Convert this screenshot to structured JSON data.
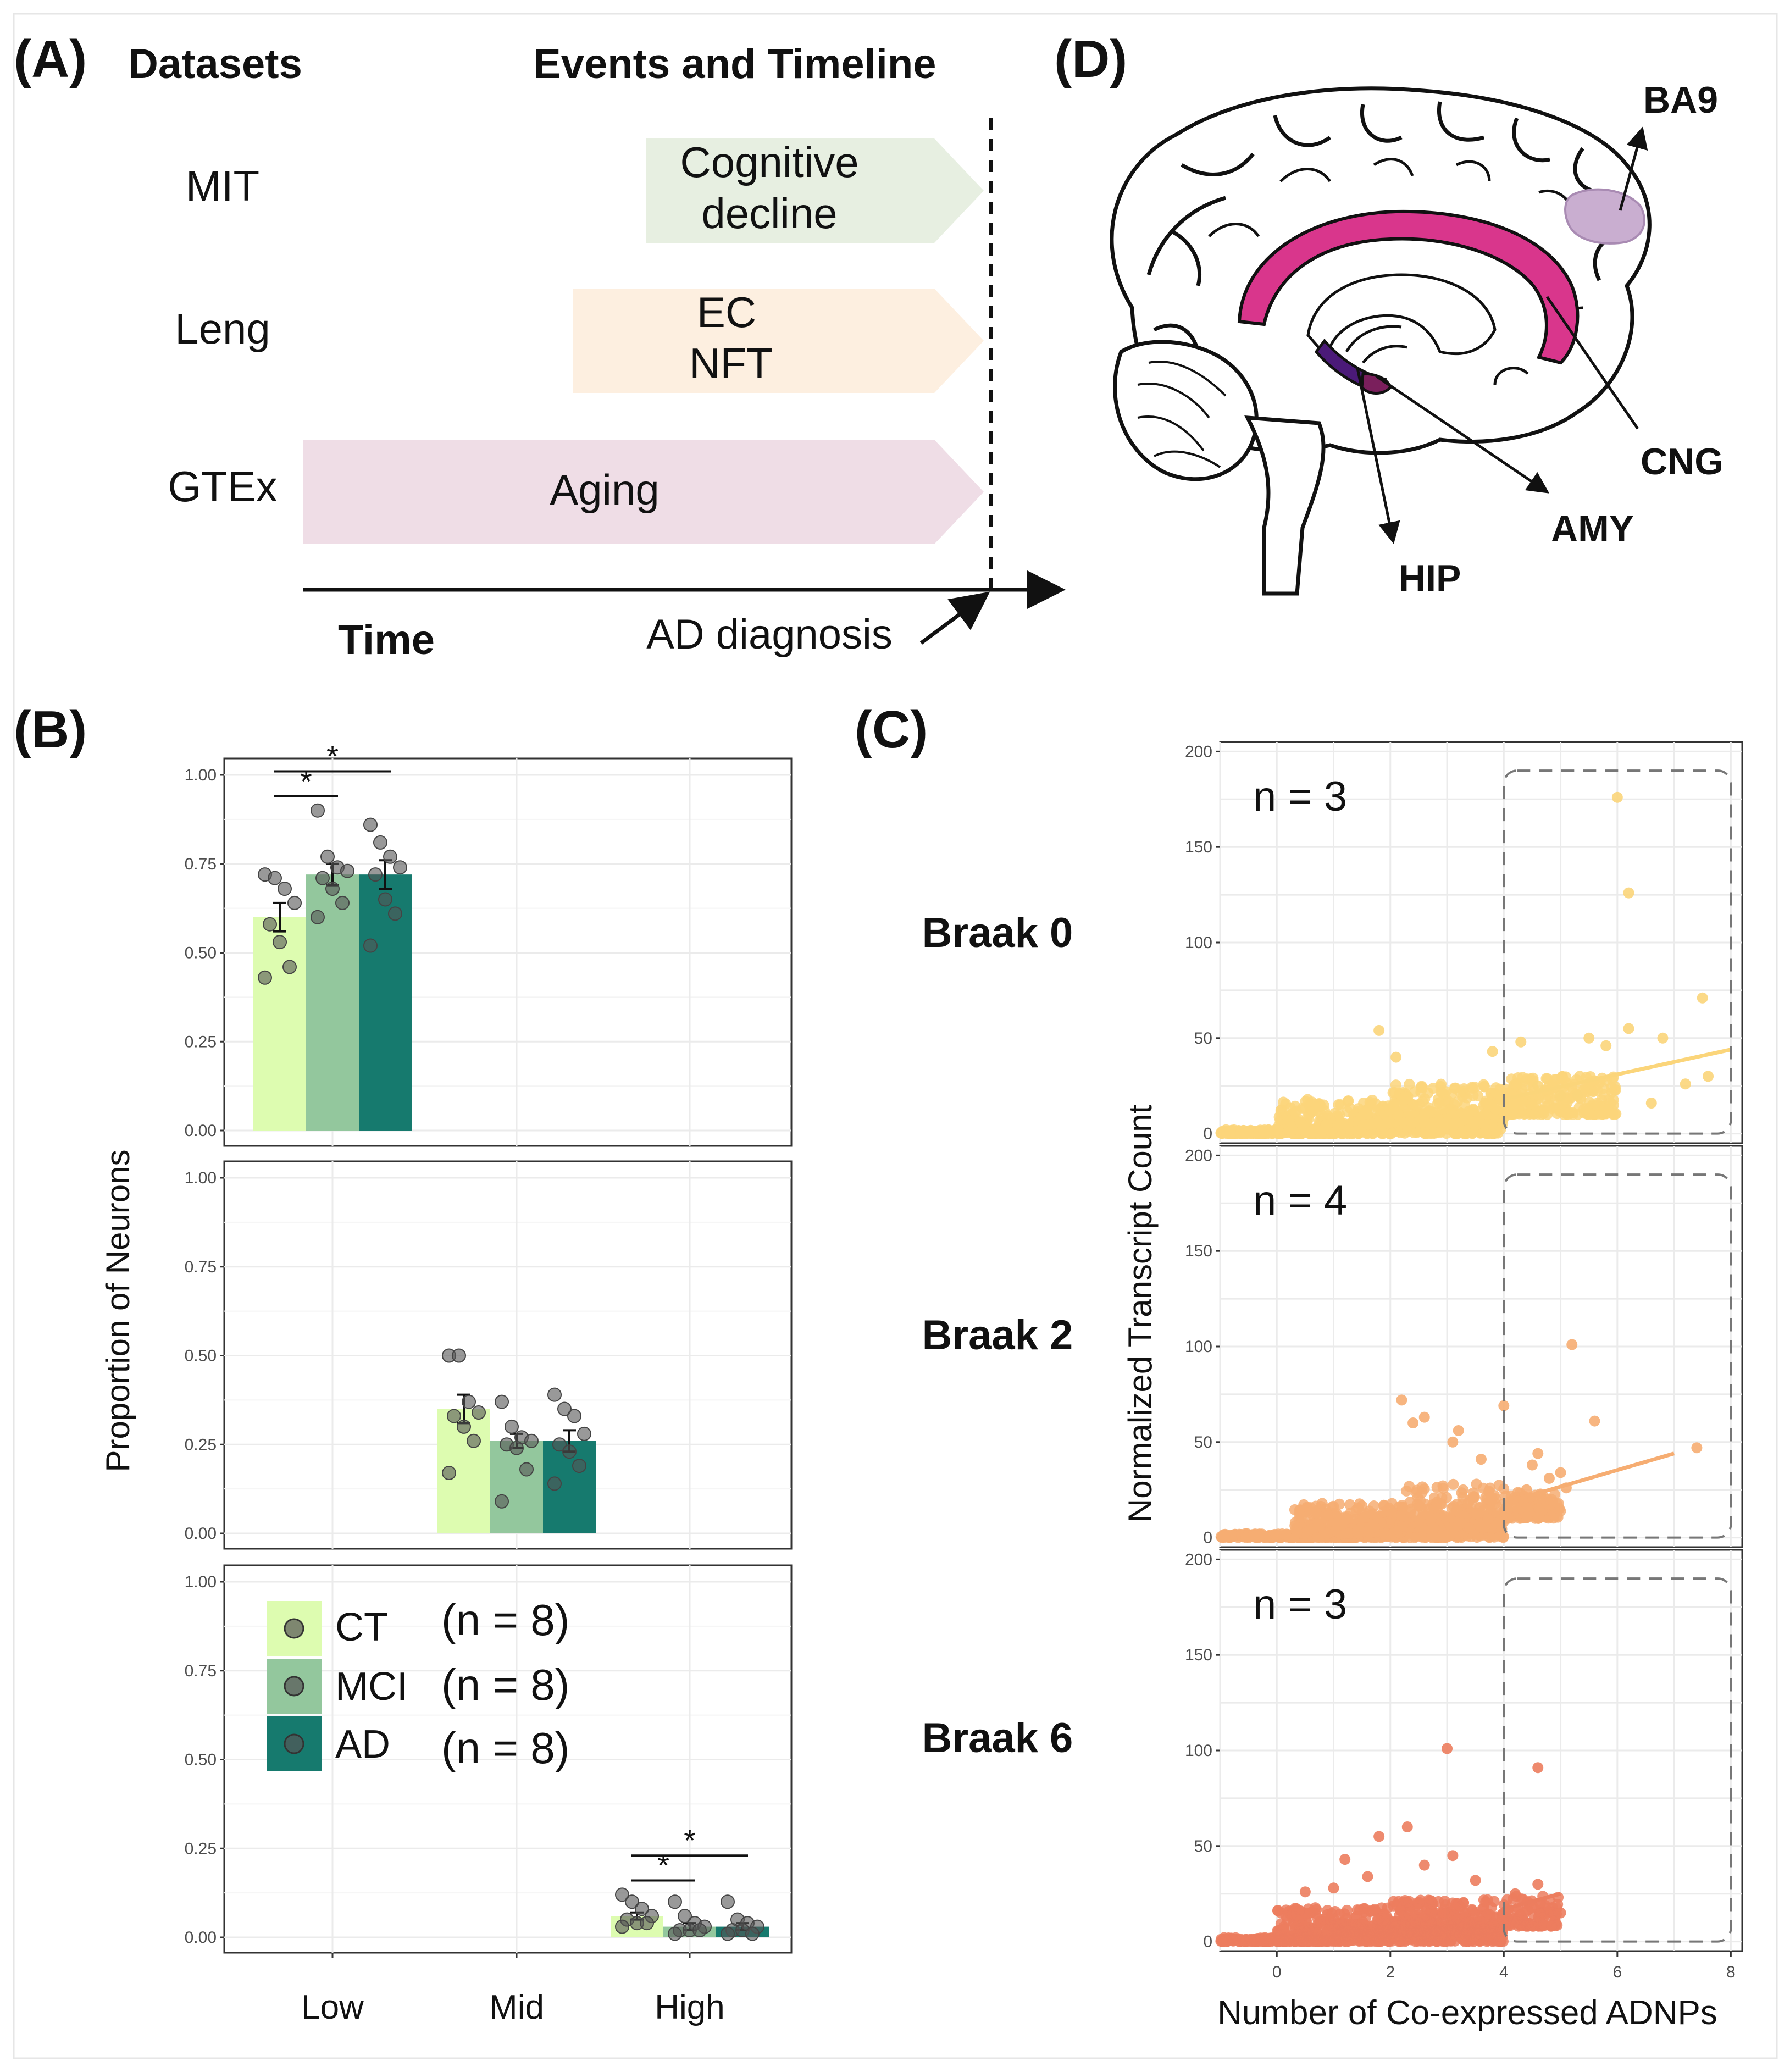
{
  "figure": {
    "panel_labels": {
      "a": "(A)",
      "b": "(B)",
      "c": "(C)",
      "d": "(D)"
    }
  },
  "panel_a": {
    "col_datasets": "Datasets",
    "col_events": "Events and Timeline",
    "rows": [
      {
        "dataset": "MIT",
        "event_line1": "Cognitive",
        "event_line2": "decline",
        "color": "#e7efe1"
      },
      {
        "dataset": "Leng",
        "event_line1": "EC",
        "event_line2": "NFT",
        "color": "#fdefe0"
      },
      {
        "dataset": "GTEx",
        "event_line1": "Aging",
        "event_line2": "",
        "color": "#efdde6"
      }
    ],
    "time_label": "Time",
    "diagnosis_label": "AD diagnosis"
  },
  "panel_d": {
    "regions": [
      {
        "label": "BA9",
        "color": "#c9aed0"
      },
      {
        "label": "CNG",
        "color": "#d9368c"
      },
      {
        "label": "AMY",
        "color": "#7a1f5c"
      },
      {
        "label": "HIP",
        "color": "#4b1a78"
      }
    ]
  },
  "chart_data": [
    {
      "type": "bar",
      "title": "(B)",
      "ylabel": "Proportion of Neurons",
      "xlabel": "",
      "categories": [
        "Low",
        "Mid",
        "High"
      ],
      "ylim": [
        0,
        1
      ],
      "yticks": [
        "0.00",
        "0.25",
        "0.50",
        "0.75",
        "1.00"
      ],
      "facets": [
        {
          "category": "Low",
          "series": [
            {
              "name": "CT",
              "value": 0.6,
              "se": 0.04,
              "points": [
                0.72,
                0.71,
                0.68,
                0.64,
                0.58,
                0.53,
                0.46,
                0.43
              ]
            },
            {
              "name": "MCI",
              "value": 0.72,
              "se": 0.03,
              "points": [
                0.9,
                0.77,
                0.74,
                0.73,
                0.71,
                0.68,
                0.64,
                0.6
              ]
            },
            {
              "name": "AD",
              "value": 0.72,
              "se": 0.04,
              "points": [
                0.86,
                0.81,
                0.77,
                0.74,
                0.72,
                0.65,
                0.61,
                0.52
              ]
            }
          ],
          "significance": [
            {
              "from": "CT",
              "to": "MCI",
              "label": "*"
            },
            {
              "from": "CT",
              "to": "AD",
              "label": "*"
            }
          ]
        },
        {
          "category": "Mid",
          "series": [
            {
              "name": "CT",
              "value": 0.35,
              "se": 0.04,
              "points": [
                0.5,
                0.5,
                0.37,
                0.34,
                0.33,
                0.3,
                0.26,
                0.17
              ]
            },
            {
              "name": "MCI",
              "value": 0.26,
              "se": 0.02,
              "points": [
                0.37,
                0.3,
                0.27,
                0.26,
                0.25,
                0.24,
                0.18,
                0.09
              ]
            },
            {
              "name": "AD",
              "value": 0.26,
              "se": 0.03,
              "points": [
                0.39,
                0.35,
                0.33,
                0.28,
                0.25,
                0.23,
                0.19,
                0.14
              ]
            }
          ],
          "significance": []
        },
        {
          "category": "High",
          "series": [
            {
              "name": "CT",
              "value": 0.06,
              "se": 0.01,
              "points": [
                0.12,
                0.1,
                0.08,
                0.06,
                0.05,
                0.04,
                0.04,
                0.03
              ]
            },
            {
              "name": "MCI",
              "value": 0.03,
              "se": 0.01,
              "points": [
                0.1,
                0.06,
                0.04,
                0.03,
                0.02,
                0.02,
                0.02,
                0.01
              ]
            },
            {
              "name": "AD",
              "value": 0.03,
              "se": 0.01,
              "points": [
                0.1,
                0.05,
                0.04,
                0.03,
                0.02,
                0.02,
                0.01,
                0.01
              ]
            }
          ],
          "significance": [
            {
              "from": "CT",
              "to": "MCI",
              "label": "*"
            },
            {
              "from": "CT",
              "to": "AD",
              "label": "*"
            }
          ]
        }
      ],
      "legend": [
        {
          "name": "CT",
          "n_label": "(n = 8)",
          "color": "#ddfcb0"
        },
        {
          "name": "MCI",
          "n_label": "(n = 8)",
          "color": "#93c79d"
        },
        {
          "name": "AD",
          "n_label": "(n = 8)",
          "color": "#167a6e"
        }
      ],
      "legend_position": "inside bottom panel, top-left"
    },
    {
      "type": "scatter",
      "title": "(C)",
      "xlabel": "Number of Co-expressed ADNPs",
      "ylabel": "Normalized Transcript Count",
      "xlim": [
        -1,
        8.2
      ],
      "ylim": [
        -5,
        205
      ],
      "xticks": [
        "0",
        "2",
        "4",
        "6",
        "8"
      ],
      "yticks": [
        "0",
        "50",
        "100",
        "150",
        "200"
      ],
      "highlight_box": {
        "x": [
          4,
          8
        ],
        "y": [
          0,
          190
        ],
        "style": "dashed"
      },
      "facets": [
        {
          "label": "Braak 0",
          "n_label": "n = 3",
          "color": "#fbd57a",
          "trend": {
            "x": [
              4,
              8
            ],
            "y": [
              18,
              44
            ]
          },
          "outliers": [
            [
              6,
              176
            ],
            [
              6.2,
              126
            ],
            [
              6.2,
              55
            ],
            [
              7.5,
              71
            ],
            [
              6.8,
              50
            ],
            [
              5.5,
              50
            ],
            [
              5.8,
              46
            ],
            [
              7.2,
              26
            ],
            [
              7.6,
              30
            ],
            [
              5.3,
              20
            ],
            [
              4.3,
              48
            ],
            [
              4.6,
              25
            ],
            [
              5,
              20
            ],
            [
              6.6,
              16
            ],
            [
              1.8,
              54
            ],
            [
              2.1,
              40
            ],
            [
              3.8,
              43
            ]
          ],
          "cloud": [
            [
              -1,
              1.4,
              0,
              2
            ],
            [
              1.4,
              4,
              0,
              12
            ],
            [
              0,
              2,
              2,
              18
            ],
            [
              2,
              4,
              5,
              26
            ],
            [
              4,
              6,
              10,
              30
            ]
          ]
        },
        {
          "label": "Braak 2",
          "n_label": "n = 4",
          "color": "#f6ad72",
          "trend": {
            "x": [
              4,
              7
            ],
            "y": [
              18,
              44
            ]
          },
          "outliers": [
            [
              5.2,
              101
            ],
            [
              5.6,
              61
            ],
            [
              7.4,
              47
            ],
            [
              2.2,
              72
            ],
            [
              2.6,
              63
            ],
            [
              3.2,
              56
            ],
            [
              4,
              69
            ],
            [
              3.1,
              50
            ],
            [
              2.4,
              60
            ],
            [
              4.5,
              38
            ],
            [
              5,
              34
            ],
            [
              5.1,
              26
            ],
            [
              4.4,
              25
            ],
            [
              4.6,
              44
            ],
            [
              3.6,
              41
            ],
            [
              4.8,
              31
            ]
          ],
          "cloud": [
            [
              -1,
              1.4,
              0,
              2
            ],
            [
              1.4,
              4,
              0,
              12
            ],
            [
              0.3,
              2.2,
              2,
              18
            ],
            [
              2.2,
              4,
              5,
              28
            ],
            [
              4,
              5,
              10,
              24
            ]
          ]
        },
        {
          "label": "Braak 6",
          "n_label": "n = 3",
          "color": "#ec7d5e",
          "trend": {
            "x": [
              4,
              5
            ],
            "y": [
              17,
              25
            ]
          },
          "outliers": [
            [
              3,
              101
            ],
            [
              4.6,
              91
            ],
            [
              2.3,
              60
            ],
            [
              1.8,
              55
            ],
            [
              1.2,
              43
            ],
            [
              2.6,
              40
            ],
            [
              3.1,
              45
            ],
            [
              1.6,
              34
            ],
            [
              1,
              28
            ],
            [
              4.6,
              30
            ],
            [
              3.5,
              32
            ],
            [
              5,
              15
            ],
            [
              4.2,
              25
            ],
            [
              4.4,
              16
            ],
            [
              0.5,
              26
            ]
          ],
          "cloud": [
            [
              -1,
              1,
              0,
              2
            ],
            [
              1,
              4,
              0,
              10
            ],
            [
              0,
              2,
              2,
              18
            ],
            [
              2,
              4,
              4,
              22
            ],
            [
              4,
              5,
              8,
              24
            ]
          ]
        }
      ]
    }
  ]
}
